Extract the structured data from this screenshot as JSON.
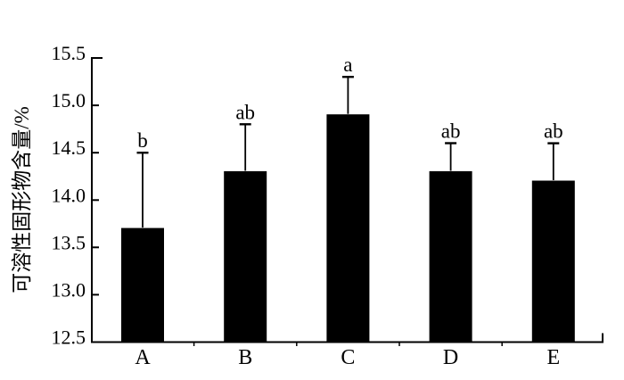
{
  "figure": {
    "background": "#ffffff",
    "foreground": "#000000"
  },
  "chart_data": {
    "type": "bar",
    "categories": [
      "A",
      "B",
      "C",
      "D",
      "E"
    ],
    "values": [
      13.7,
      14.3,
      14.9,
      14.3,
      14.2
    ],
    "errors_plus": [
      0.8,
      0.5,
      0.4,
      0.3,
      0.4
    ],
    "sig_letters": [
      "b",
      "ab",
      "a",
      "ab",
      "ab"
    ],
    "title": "",
    "xlabel": "",
    "ylabel": "可溶性固形物含量/%",
    "ylim": [
      12.5,
      15.5
    ],
    "ytick_step": 0.5,
    "ytick_labels": [
      "12.5",
      "13.0",
      "13.5",
      "14.0",
      "14.5",
      "15.0",
      "15.5"
    ],
    "bar_color": "#000000",
    "axis_color": "#000000",
    "background": "#ffffff",
    "grid": false,
    "legend": null,
    "error_bar_direction": "plus-only",
    "minor_ticks_between_categories": true
  }
}
